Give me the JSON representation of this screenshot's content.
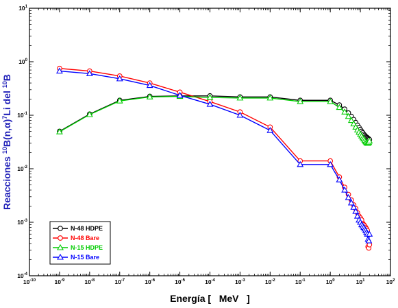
{
  "chart_data": {
    "type": "line",
    "xlabel": "Energía [   MeV   ]",
    "ylabel": "Reacciones 10B(n,α)7Li del 10B",
    "ylabel_parts": [
      {
        "text": "Reacciones ",
        "sup": false
      },
      {
        "text": "10",
        "sup": true
      },
      {
        "text": "B(n,α)",
        "sup": false
      },
      {
        "text": "7",
        "sup": true
      },
      {
        "text": "Li del ",
        "sup": false
      },
      {
        "text": "10",
        "sup": true
      },
      {
        "text": "B",
        "sup": false
      }
    ],
    "x_scale": "log",
    "y_scale": "log",
    "xlim": [
      1e-10,
      100
    ],
    "ylim": [
      0.0001,
      10
    ],
    "x_ticks": [
      {
        "base": "10",
        "exp": "-10",
        "value": 1e-10
      },
      {
        "base": "10",
        "exp": "-9",
        "value": 1e-09
      },
      {
        "base": "10",
        "exp": "-8",
        "value": 1e-08
      },
      {
        "base": "10",
        "exp": "-7",
        "value": 1e-07
      },
      {
        "base": "10",
        "exp": "-6",
        "value": 1e-06
      },
      {
        "base": "10",
        "exp": "-5",
        "value": 1e-05
      },
      {
        "base": "10",
        "exp": "-4",
        "value": 0.0001
      },
      {
        "base": "10",
        "exp": "-3",
        "value": 0.001
      },
      {
        "base": "10",
        "exp": "-2",
        "value": 0.01
      },
      {
        "base": "10",
        "exp": "-1",
        "value": 0.1
      },
      {
        "base": "10",
        "exp": "0",
        "value": 1
      },
      {
        "base": "10",
        "exp": "1",
        "value": 10
      },
      {
        "base": "10",
        "exp": "2",
        "value": 100
      }
    ],
    "y_ticks": [
      {
        "base": "10",
        "exp": "-4",
        "value": 0.0001
      },
      {
        "base": "10",
        "exp": "-3",
        "value": 0.001
      },
      {
        "base": "10",
        "exp": "-2",
        "value": 0.01
      },
      {
        "base": "10",
        "exp": "-1",
        "value": 0.1
      },
      {
        "base": "10",
        "exp": "0",
        "value": 1
      },
      {
        "base": "10",
        "exp": "1",
        "value": 10
      }
    ],
    "grid": false,
    "legend_position": "bottom-left",
    "series": [
      {
        "name": "N-48 HDPE",
        "color": "#000000",
        "marker": "circle",
        "x": [
          1e-09,
          1e-08,
          1e-07,
          1e-06,
          1e-05,
          0.0001,
          0.001,
          0.01,
          0.1,
          1,
          2,
          3,
          4,
          5,
          6,
          7,
          8,
          9,
          10,
          11,
          12,
          13,
          14,
          15,
          16,
          17,
          18,
          19,
          20
        ],
        "y": [
          0.05,
          0.105,
          0.19,
          0.225,
          0.23,
          0.23,
          0.22,
          0.22,
          0.19,
          0.19,
          0.155,
          0.13,
          0.11,
          0.095,
          0.083,
          0.073,
          0.065,
          0.059,
          0.054,
          0.05,
          0.047,
          0.044,
          0.042,
          0.04,
          0.039,
          0.038,
          0.037,
          0.036,
          0.035
        ]
      },
      {
        "name": "N-48 Bare",
        "color": "#ff0000",
        "marker": "circle",
        "x": [
          1e-09,
          1e-08,
          1e-07,
          1e-06,
          1e-05,
          0.0001,
          0.001,
          0.01,
          0.1,
          1,
          2,
          3,
          4,
          5,
          6,
          7,
          8,
          9,
          10,
          11,
          12,
          13,
          14,
          15,
          16,
          17,
          18,
          19,
          20
        ],
        "y": [
          0.75,
          0.67,
          0.54,
          0.4,
          0.27,
          0.18,
          0.115,
          0.06,
          0.014,
          0.014,
          0.007,
          0.0045,
          0.0033,
          0.0026,
          0.0021,
          0.0018,
          0.0015,
          0.0013,
          0.0012,
          0.0011,
          0.00095,
          0.0009,
          0.00085,
          0.0008,
          0.00075,
          0.0007,
          0.00035,
          0.00033,
          0.00038
        ]
      },
      {
        "name": "N-15 HDPE",
        "color": "#00cc00",
        "marker": "triangle",
        "x": [
          1e-09,
          1e-08,
          1e-07,
          1e-06,
          1e-05,
          0.0001,
          0.001,
          0.01,
          0.1,
          1,
          2,
          3,
          4,
          5,
          6,
          7,
          8,
          9,
          10,
          11,
          12,
          13,
          14,
          15,
          16,
          17,
          18,
          19,
          20
        ],
        "y": [
          0.049,
          0.103,
          0.185,
          0.22,
          0.225,
          0.215,
          0.21,
          0.21,
          0.18,
          0.18,
          0.14,
          0.115,
          0.095,
          0.08,
          0.069,
          0.06,
          0.053,
          0.048,
          0.044,
          0.041,
          0.038,
          0.036,
          0.034,
          0.032,
          0.031,
          0.03,
          0.03,
          0.031,
          0.033
        ]
      },
      {
        "name": "N-15 Bare",
        "color": "#0000ff",
        "marker": "triangle",
        "x": [
          1e-09,
          1e-08,
          1e-07,
          1e-06,
          1e-05,
          0.0001,
          0.001,
          0.01,
          0.1,
          1,
          2,
          3,
          4,
          5,
          6,
          7,
          8,
          9,
          10,
          11,
          12,
          13,
          14,
          15,
          16,
          17,
          18,
          19,
          20
        ],
        "y": [
          0.67,
          0.6,
          0.48,
          0.36,
          0.235,
          0.16,
          0.1,
          0.052,
          0.012,
          0.012,
          0.0062,
          0.004,
          0.0029,
          0.0023,
          0.0019,
          0.0016,
          0.0013,
          0.0011,
          0.001,
          0.0009,
          0.00085,
          0.0008,
          0.00075,
          0.0007,
          0.00065,
          0.0006,
          0.00048,
          0.00045,
          0.0006
        ]
      }
    ]
  }
}
